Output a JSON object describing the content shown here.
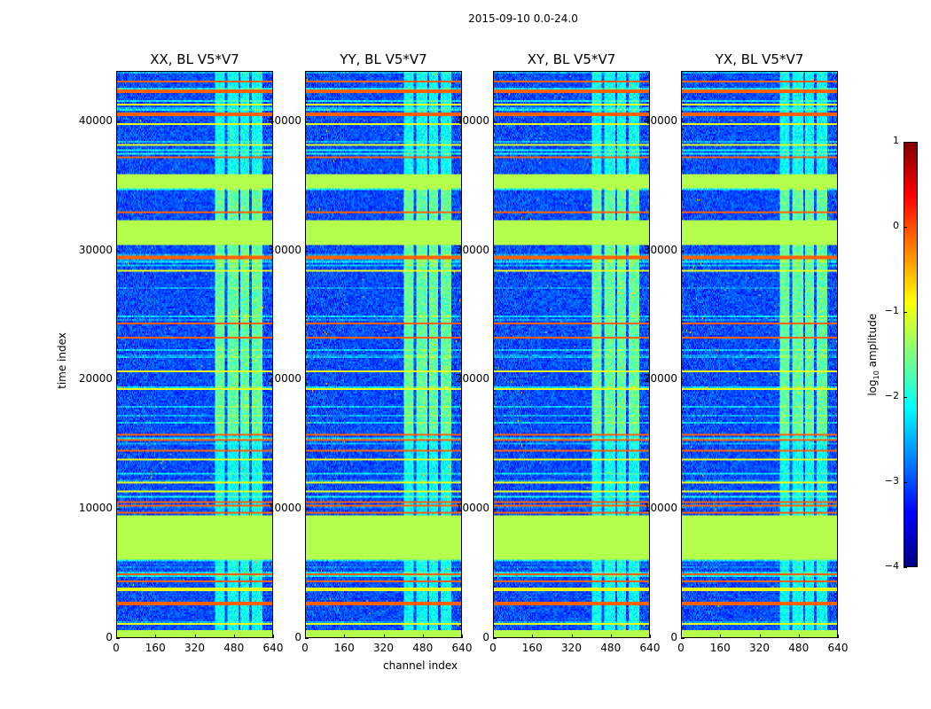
{
  "chart_data": {
    "type": "heatmap",
    "title": "2015-09-10 0.0-24.0",
    "xlabel": "channel index",
    "ylabel": "time index",
    "xlim": [
      0,
      640
    ],
    "ylim": [
      0,
      43900
    ],
    "xticks": [
      "0",
      "160",
      "320",
      "480",
      "640"
    ],
    "xtick_values": [
      0,
      160,
      320,
      480,
      640
    ],
    "yticks": [
      "0",
      "10000",
      "20000",
      "30000",
      "40000"
    ],
    "ytick_values": [
      0,
      10000,
      20000,
      30000,
      40000
    ],
    "panels": [
      {
        "title": "XX, BL V5*V7"
      },
      {
        "title": "YY, BL V5*V7"
      },
      {
        "title": "XY, BL V5*V7"
      },
      {
        "title": "YX, BL V5*V7"
      }
    ],
    "colorbar": {
      "label_prefix": "log",
      "label_sub": "10",
      "label_suffix": " amplitude",
      "range": [
        -4,
        1
      ],
      "ticks": [
        "1",
        "0",
        "−1",
        "−2",
        "−3",
        "−4"
      ],
      "tick_values": [
        1,
        0,
        -1,
        -2,
        -3,
        -4
      ],
      "colormap": "jet"
    },
    "background_log_amplitude": -3.0,
    "flagged_time_ranges": [
      [
        0,
        600
      ],
      [
        6100,
        9400
      ],
      [
        30400,
        32400
      ],
      [
        34900,
        36000
      ]
    ],
    "flagged_value": -1.25,
    "bright_channel_ranges": [
      [
        405,
        445
      ],
      [
        455,
        500
      ],
      [
        510,
        545
      ],
      [
        555,
        600
      ]
    ],
    "bright_channel_value": -1.9,
    "red_line_times": [
      2600,
      4300,
      4900,
      9700,
      10200,
      10500,
      14500,
      15300,
      15700,
      23300,
      24300,
      29500,
      33000,
      37200,
      40600,
      42400,
      43200
    ],
    "yellow_line_times": [
      1000,
      3700,
      11300,
      12000,
      13800,
      19300,
      20600,
      28500,
      38200,
      39800,
      41400
    ]
  }
}
